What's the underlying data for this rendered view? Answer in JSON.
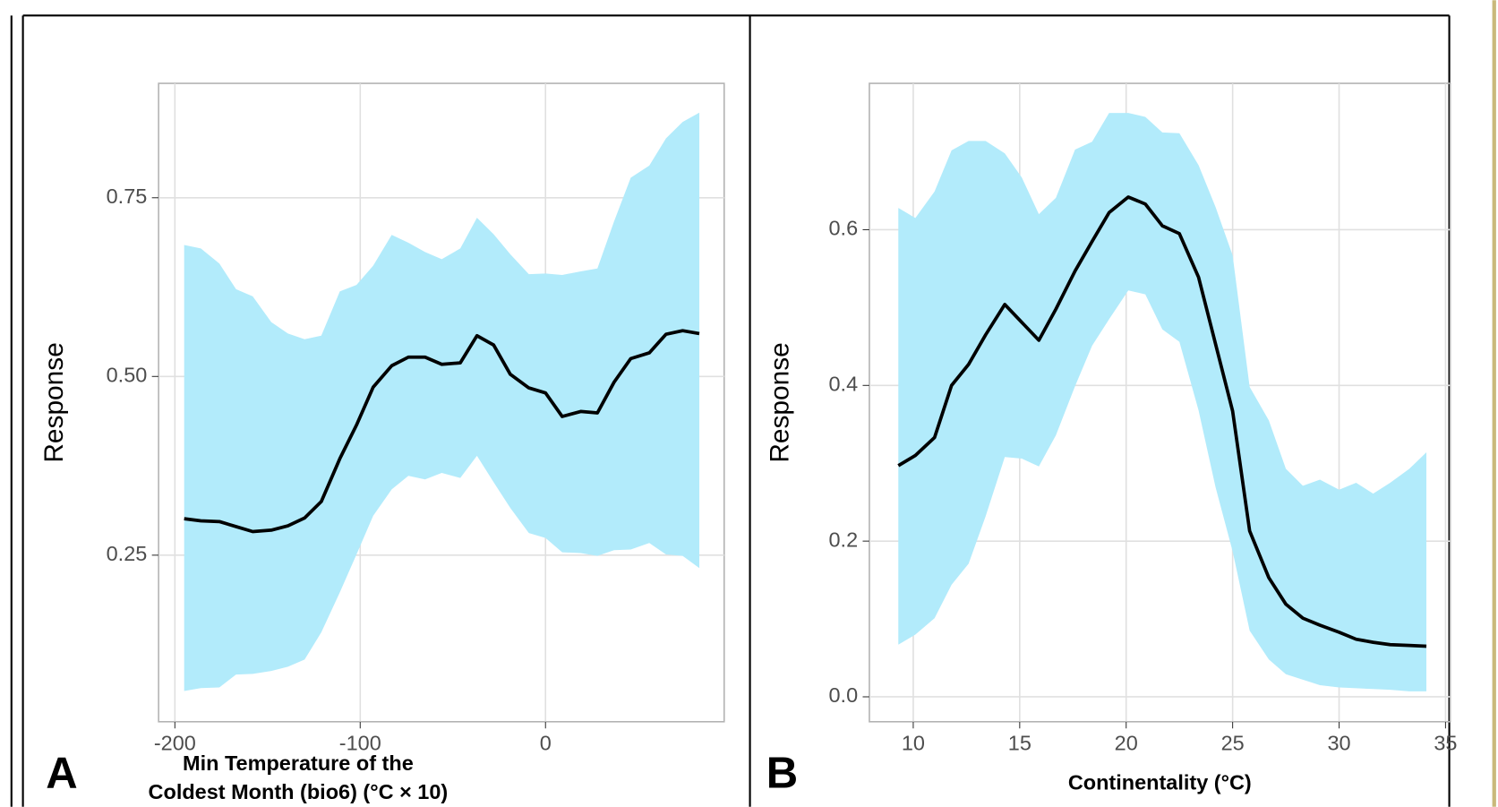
{
  "chart_data": [
    {
      "type": "line",
      "panel_label": "A",
      "ylabel": "Response",
      "xlabel": [
        "Min Temperature of the",
        "Coldest Month (bio6) (°C × 10)"
      ],
      "color": "#000000",
      "band_color": "#b2ebfb",
      "grid": true,
      "xlim": [
        -208.8,
        96.4
      ],
      "xticks": [
        -200,
        -100,
        0
      ],
      "ylim": [
        0.017,
        0.91
      ],
      "yticks": [
        0.25,
        {
          "value": 0.5,
          "label": "0.50"
        },
        0.75
      ],
      "x": [
        -195,
        -186,
        -176,
        -167,
        -158,
        -148,
        -139,
        -130,
        -121,
        -111,
        -102,
        -93,
        -83,
        -74,
        -65,
        -56,
        -46,
        -37,
        -28,
        -19,
        -9,
        0,
        9,
        19,
        28,
        37,
        46,
        56,
        65,
        74,
        83
      ],
      "values": [
        0.301,
        0.298,
        0.297,
        0.29,
        0.283,
        0.285,
        0.291,
        0.302,
        0.325,
        0.385,
        0.432,
        0.485,
        0.515,
        0.527,
        0.527,
        0.517,
        0.519,
        0.557,
        0.544,
        0.503,
        0.484,
        0.477,
        0.444,
        0.451,
        0.449,
        0.492,
        0.525,
        0.533,
        0.559,
        0.564,
        0.56
      ],
      "upper": [
        0.684,
        0.679,
        0.658,
        0.622,
        0.612,
        0.576,
        0.56,
        0.552,
        0.557,
        0.619,
        0.628,
        0.655,
        0.698,
        0.687,
        0.674,
        0.664,
        0.679,
        0.722,
        0.699,
        0.671,
        0.643,
        0.644,
        0.642,
        0.647,
        0.651,
        0.717,
        0.778,
        0.795,
        0.833,
        0.856,
        0.869
      ],
      "lower": [
        0.06,
        0.064,
        0.065,
        0.083,
        0.084,
        0.088,
        0.094,
        0.104,
        0.142,
        0.198,
        0.251,
        0.305,
        0.342,
        0.361,
        0.356,
        0.365,
        0.358,
        0.389,
        0.352,
        0.316,
        0.281,
        0.274,
        0.254,
        0.253,
        0.249,
        0.257,
        0.258,
        0.267,
        0.251,
        0.249,
        0.232
      ]
    },
    {
      "type": "line",
      "panel_label": "B",
      "ylabel": "Response",
      "xlabel": [
        "Continentality (°C)"
      ],
      "color": "#000000",
      "band_color": "#b2ebfb",
      "grid": true,
      "xlim": [
        7.94,
        35.22
      ],
      "xticks": [
        10,
        15,
        20,
        25,
        30,
        35
      ],
      "ylim": [
        -0.032,
        0.788
      ],
      "yticks": [
        {
          "value": 0,
          "label": "0.0"
        },
        0.2,
        0.4,
        0.6
      ],
      "x": [
        9.3,
        10.1,
        11.0,
        11.8,
        12.6,
        13.4,
        14.3,
        15.1,
        15.9,
        16.7,
        17.6,
        18.4,
        19.2,
        20.1,
        20.9,
        21.7,
        22.5,
        23.4,
        24.2,
        25.0,
        25.8,
        26.7,
        27.5,
        28.3,
        29.1,
        30.0,
        30.8,
        31.6,
        32.4,
        33.3,
        34.1
      ],
      "values": [
        0.297,
        0.31,
        0.333,
        0.4,
        0.427,
        0.465,
        0.504,
        0.481,
        0.458,
        0.498,
        0.547,
        0.585,
        0.622,
        0.642,
        0.633,
        0.605,
        0.595,
        0.539,
        0.453,
        0.367,
        0.213,
        0.153,
        0.119,
        0.101,
        0.092,
        0.083,
        0.074,
        0.07,
        0.067,
        0.066,
        0.065
      ],
      "upper": [
        0.628,
        0.615,
        0.649,
        0.702,
        0.714,
        0.714,
        0.698,
        0.667,
        0.62,
        0.641,
        0.703,
        0.713,
        0.75,
        0.75,
        0.745,
        0.725,
        0.724,
        0.683,
        0.629,
        0.567,
        0.398,
        0.355,
        0.293,
        0.271,
        0.279,
        0.266,
        0.275,
        0.261,
        0.275,
        0.293,
        0.314
      ],
      "lower": [
        0.067,
        0.08,
        0.101,
        0.144,
        0.171,
        0.232,
        0.308,
        0.306,
        0.296,
        0.336,
        0.399,
        0.451,
        0.485,
        0.522,
        0.517,
        0.472,
        0.456,
        0.368,
        0.269,
        0.187,
        0.085,
        0.048,
        0.029,
        0.022,
        0.015,
        0.012,
        0.011,
        0.01,
        0.009,
        0.007,
        0.007
      ]
    }
  ]
}
